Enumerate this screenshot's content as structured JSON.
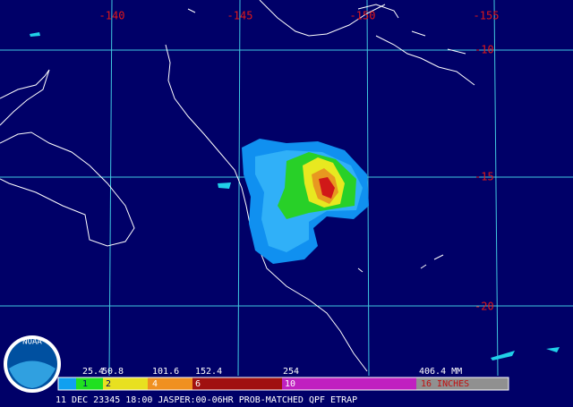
{
  "map": {
    "longitude_labels": [
      "-140",
      "-145",
      "-150",
      "-155"
    ],
    "latitude_labels": [
      "-10",
      "-15",
      "-20"
    ],
    "legend": {
      "mm_labels": [
        "25.4",
        "50.8",
        "101.6",
        "152.4",
        "254",
        "406.4 MM"
      ],
      "inch_labels": [
        "1",
        "2",
        "4",
        "6",
        "10",
        "16 INCHES"
      ]
    },
    "caption": "11 DEC 23345 18:00 JASPER:00-06HR PROB-MATCHED QPF ETRAP",
    "logo": "NOAA"
  }
}
